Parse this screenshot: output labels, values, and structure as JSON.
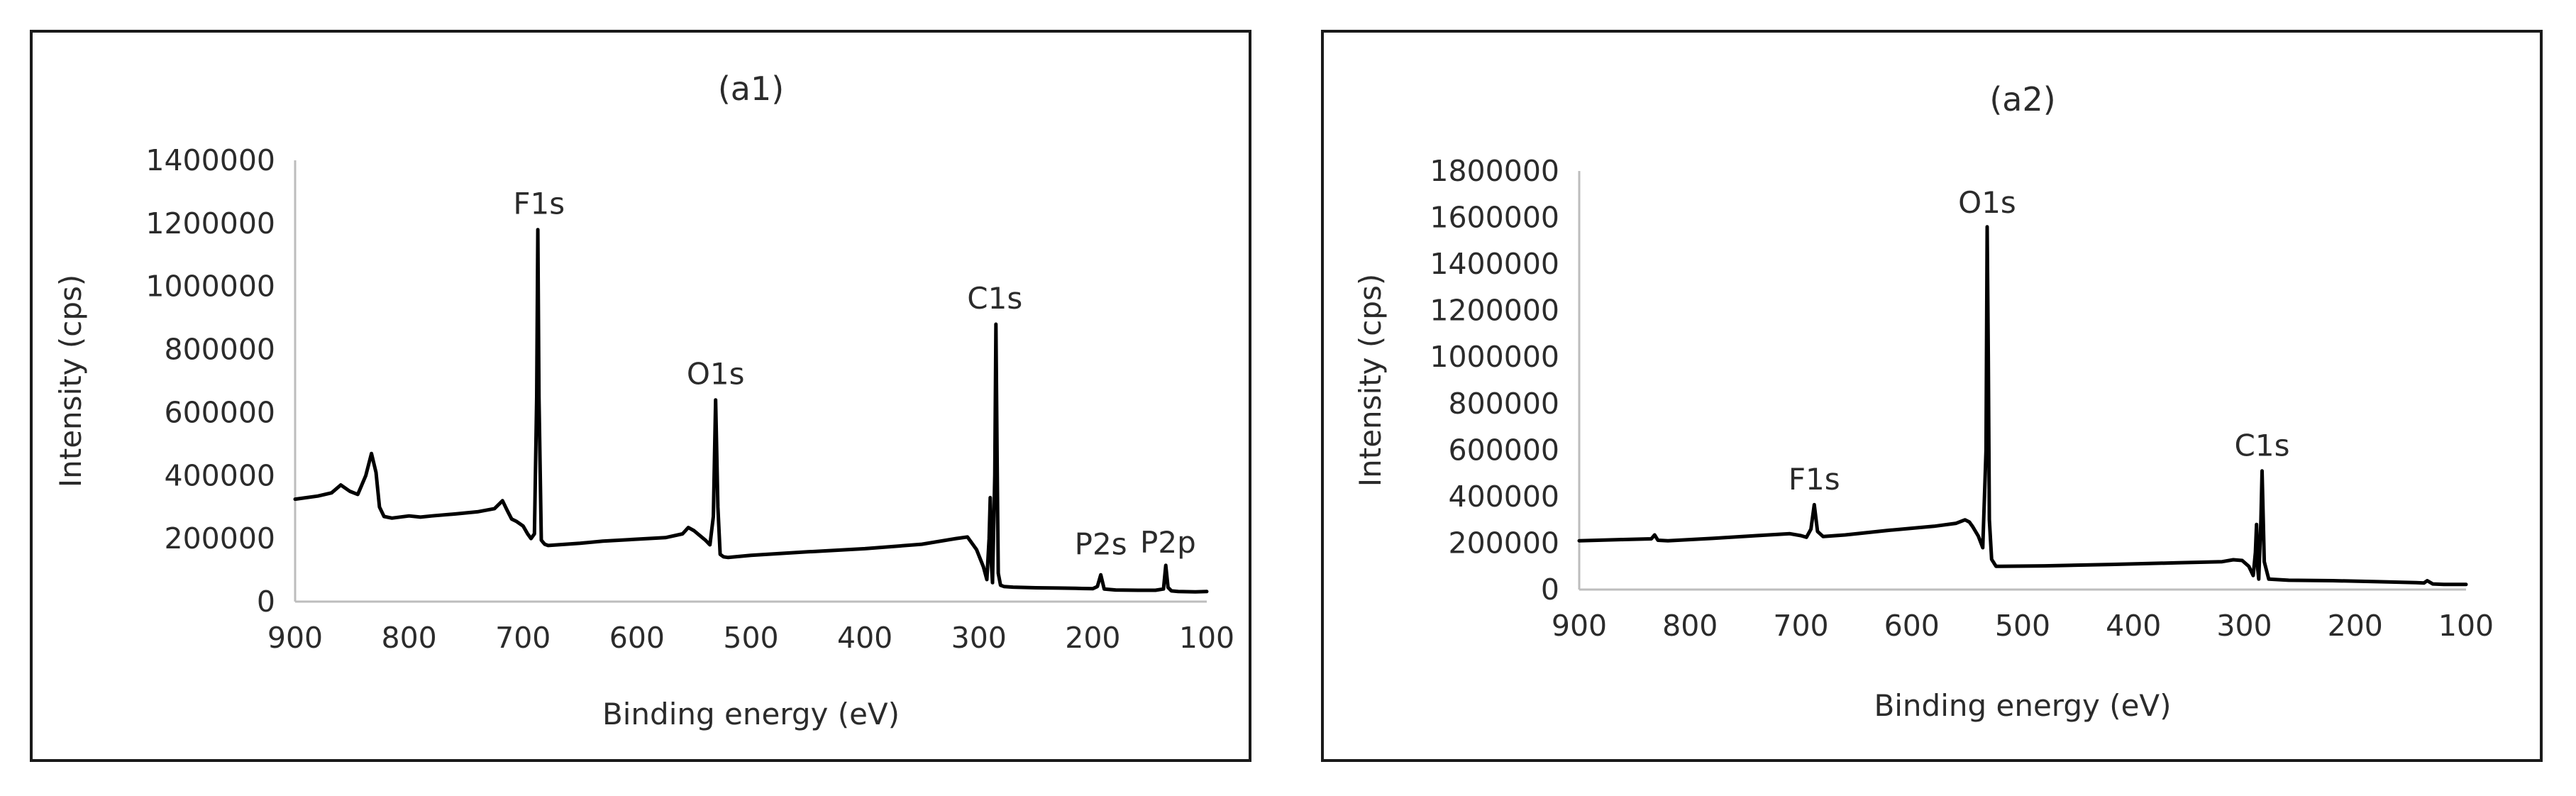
{
  "chart_data": [
    {
      "type": "line",
      "title": "(a1)",
      "xlabel": "Binding energy (eV)",
      "ylabel": "Intensity (cps)",
      "xlim": [
        900,
        100
      ],
      "ylim": [
        0,
        1400000
      ],
      "x_reversed": true,
      "xticks": [
        900,
        800,
        700,
        600,
        500,
        400,
        300,
        200,
        100
      ],
      "yticks": [
        0,
        200000,
        400000,
        600000,
        800000,
        1000000,
        1200000,
        1400000
      ],
      "grid": false,
      "legend": "none",
      "line_color": "#000000",
      "series": [
        {
          "x": [
            900,
            880,
            868,
            860,
            852,
            845,
            838,
            833,
            829,
            826,
            822,
            815,
            800,
            790,
            780,
            760,
            740,
            725,
            718,
            714,
            710,
            706,
            700,
            696,
            693,
            690,
            688,
            687,
            686,
            684,
            681,
            678,
            670,
            650,
            630,
            600,
            575,
            560,
            555,
            550,
            545,
            540,
            536,
            533,
            531,
            529,
            527,
            524,
            520,
            500,
            450,
            400,
            350,
            320,
            310,
            302,
            296,
            293,
            291,
            290,
            289,
            288,
            286,
            285,
            284,
            283,
            281,
            278,
            270,
            250,
            230,
            215,
            200,
            196,
            193,
            190,
            180,
            160,
            145,
            138,
            136,
            134,
            131,
            125,
            110,
            100
          ],
          "y": [
            325000,
            335000,
            345000,
            370000,
            350000,
            340000,
            400000,
            470000,
            410000,
            300000,
            270000,
            265000,
            272000,
            268000,
            272000,
            278000,
            285000,
            295000,
            320000,
            290000,
            262000,
            255000,
            240000,
            215000,
            200000,
            215000,
            650000,
            1180000,
            650000,
            195000,
            182000,
            178000,
            180000,
            185000,
            192000,
            198000,
            203000,
            215000,
            235000,
            225000,
            210000,
            195000,
            180000,
            270000,
            640000,
            300000,
            150000,
            142000,
            140000,
            147000,
            158000,
            168000,
            182000,
            200000,
            205000,
            165000,
            110000,
            70000,
            200000,
            330000,
            120000,
            60000,
            400000,
            880000,
            450000,
            90000,
            52000,
            48000,
            46000,
            44000,
            43000,
            42000,
            41000,
            48000,
            85000,
            40000,
            37000,
            36000,
            36000,
            40000,
            115000,
            45000,
            34000,
            32000,
            31000,
            32000
          ]
        }
      ],
      "annotations": [
        {
          "text": "F1s",
          "x": 686,
          "y": 1230000
        },
        {
          "text": "O1s",
          "x": 531,
          "y": 690000
        },
        {
          "text": "C1s",
          "x": 286,
          "y": 930000
        },
        {
          "text": "P2s",
          "x": 193,
          "y": 150000
        },
        {
          "text": "P2p",
          "x": 134,
          "y": 155000
        }
      ]
    },
    {
      "type": "line",
      "title": "(a2)",
      "xlabel": "Binding energy (eV)",
      "ylabel": "Intensity (cps)",
      "xlim": [
        900,
        100
      ],
      "ylim": [
        0,
        1800000
      ],
      "x_reversed": true,
      "xticks": [
        900,
        800,
        700,
        600,
        500,
        400,
        300,
        200,
        100
      ],
      "yticks": [
        0,
        200000,
        400000,
        600000,
        800000,
        1000000,
        1200000,
        1400000,
        1600000,
        1800000
      ],
      "grid": false,
      "legend": "none",
      "line_color": "#000000",
      "series": [
        {
          "x": [
            900,
            860,
            835,
            832,
            829,
            820,
            780,
            740,
            710,
            700,
            695,
            691,
            688,
            685,
            680,
            660,
            620,
            580,
            560,
            552,
            548,
            545,
            540,
            536,
            533,
            532,
            531,
            530,
            528,
            524,
            520,
            480,
            420,
            360,
            320,
            310,
            302,
            296,
            292,
            290,
            289,
            288,
            287,
            285,
            284,
            282,
            278,
            260,
            220,
            180,
            145,
            138,
            135,
            130,
            120,
            100
          ],
          "y": [
            210000,
            215000,
            218000,
            235000,
            212000,
            210000,
            220000,
            232000,
            240000,
            232000,
            225000,
            260000,
            365000,
            250000,
            228000,
            235000,
            255000,
            272000,
            285000,
            300000,
            290000,
            270000,
            230000,
            180000,
            600000,
            1560000,
            1000000,
            300000,
            130000,
            100000,
            100000,
            102000,
            108000,
            115000,
            120000,
            128000,
            125000,
            100000,
            60000,
            160000,
            280000,
            90000,
            45000,
            300000,
            510000,
            120000,
            45000,
            40000,
            38000,
            34000,
            30000,
            28000,
            38000,
            24000,
            22000,
            22000
          ]
        }
      ],
      "annotations": [
        {
          "text": "O1s",
          "x": 532,
          "y": 1620000
        },
        {
          "text": "F1s",
          "x": 688,
          "y": 430000
        },
        {
          "text": "C1s",
          "x": 284,
          "y": 575000
        }
      ]
    }
  ]
}
